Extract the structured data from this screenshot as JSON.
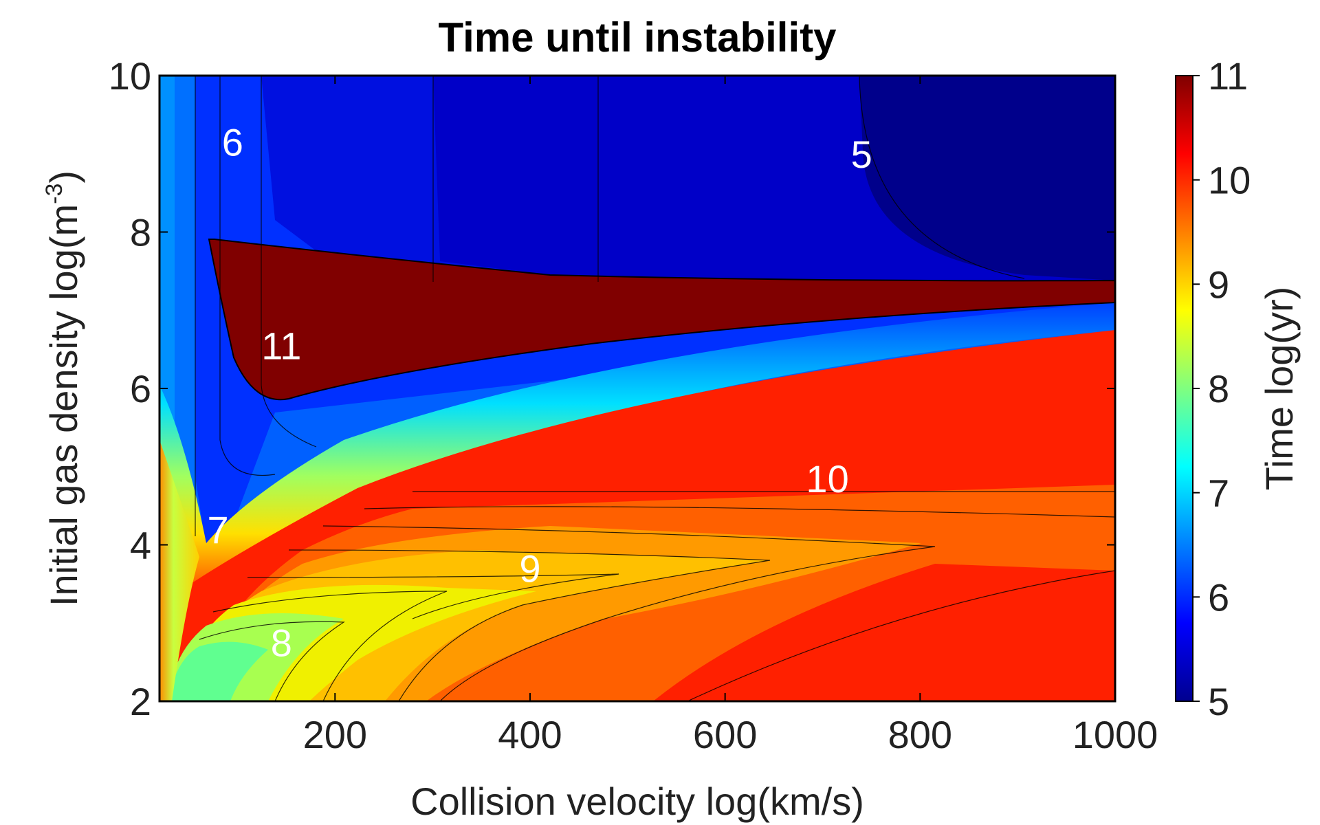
{
  "chart_data": {
    "type": "heatmap",
    "subtype": "filled-contour",
    "title": "Time until instability",
    "xlabel": "Collision velocity log(km/s)",
    "ylabel": "Initial gas density log(m",
    "ylabel_superscript": "-3",
    "ylabel_suffix": ")",
    "colorbar_label": "Time log(yr)",
    "colormap": "jet",
    "xlim": [
      20,
      1000
    ],
    "ylim": [
      2,
      10
    ],
    "clim": [
      5,
      11
    ],
    "xticks": [
      200,
      400,
      600,
      800,
      1000
    ],
    "xtick_labels": [
      "200",
      "400",
      "600",
      "800",
      "1000"
    ],
    "yticks": [
      2,
      4,
      6,
      8,
      10
    ],
    "ytick_labels": [
      "2",
      "4",
      "6",
      "8",
      "10"
    ],
    "cticks": [
      5,
      6,
      7,
      8,
      9,
      10,
      11
    ],
    "ctick_labels": [
      "5",
      "6",
      "7",
      "8",
      "9",
      "10",
      "11"
    ],
    "contour_labels": [
      {
        "text": "6",
        "x": 95,
        "y": 9.15
      },
      {
        "text": "5",
        "x": 740,
        "y": 9.0
      },
      {
        "text": "11",
        "x": 145,
        "y": 6.55
      },
      {
        "text": "10",
        "x": 705,
        "y": 4.85
      },
      {
        "text": "7",
        "x": 80,
        "y": 4.2
      },
      {
        "text": "9",
        "x": 400,
        "y": 3.7
      },
      {
        "text": "8",
        "x": 145,
        "y": 2.75
      }
    ],
    "regions": [
      {
        "level": 11,
        "description": "band from x≈65 to 1000, y≈5.85 to 7.9"
      },
      {
        "level": 10,
        "description": "large region at high velocity below the 11 band"
      },
      {
        "level": 5,
        "description": "top-right region above y≈7.4"
      }
    ],
    "grid": false,
    "colors": {
      "lvl5": "#00008b",
      "lvl5_5": "#0000cd",
      "lvl6": "#0030ff",
      "lvl7": "#00d8ff",
      "lvl8": "#8aff70",
      "lvl9": "#ffd000",
      "lvl10": "#ff2000",
      "lvl11": "#800000"
    }
  }
}
